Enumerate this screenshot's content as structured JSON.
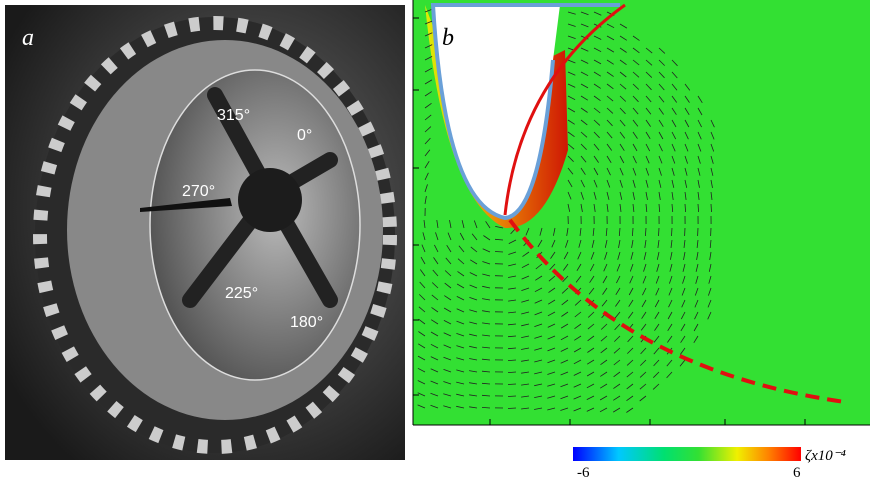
{
  "panel_a": {
    "label": "a",
    "angles": [
      "315°",
      "0°",
      "270°",
      "225°",
      "180°"
    ]
  },
  "panel_b": {
    "label": "b",
    "colorbar": {
      "min_label": "-6",
      "max_label": "6",
      "title": "ζx10⁻⁴"
    }
  }
}
